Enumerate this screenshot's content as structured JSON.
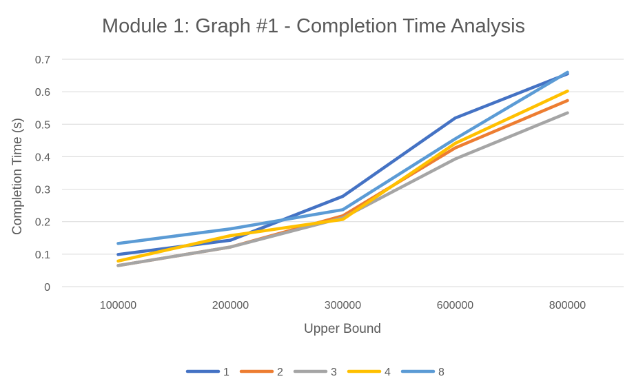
{
  "chart_data": {
    "type": "line",
    "title": "Module 1: Graph #1 - Completion Time Analysis",
    "xlabel": "Upper Bound",
    "ylabel": "Completion Time (s)",
    "categories": [
      "100000",
      "200000",
      "300000",
      "600000",
      "800000"
    ],
    "ylim": [
      0,
      0.7
    ],
    "yticks": [
      "0",
      "0.1",
      "0.2",
      "0.3",
      "0.4",
      "0.5",
      "0.6",
      "0.7"
    ],
    "grid": true,
    "legend_position": "bottom",
    "series": [
      {
        "name": "1",
        "color": "#4472C4",
        "values": [
          0.099,
          0.143,
          0.278,
          0.519,
          0.655
        ]
      },
      {
        "name": "2",
        "color": "#ED7D31",
        "values": [
          0.065,
          0.122,
          0.218,
          0.427,
          0.573
        ]
      },
      {
        "name": "3",
        "color": "#A5A5A5",
        "values": [
          0.065,
          0.122,
          0.212,
          0.393,
          0.535
        ]
      },
      {
        "name": "4",
        "color": "#FFC000",
        "values": [
          0.079,
          0.157,
          0.207,
          0.441,
          0.602
        ]
      },
      {
        "name": "8",
        "color": "#5B9BD5",
        "values": [
          0.133,
          0.178,
          0.237,
          0.455,
          0.66
        ]
      }
    ]
  }
}
